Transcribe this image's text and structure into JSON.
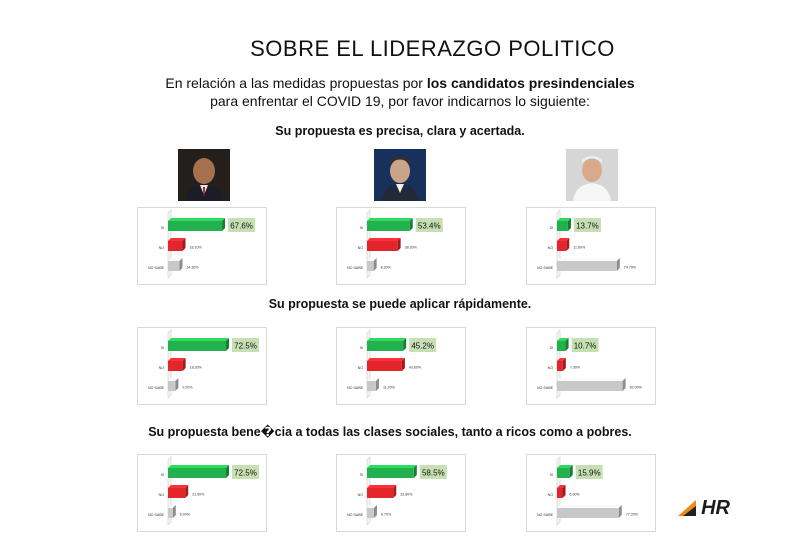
{
  "page": {
    "title": "SOBRE EL LIDERAZGO POLITICO",
    "intro_prefix": "En relación a las medidas propuestas por ",
    "intro_bold": "los candidatos presindenciales",
    "intro_line2": "para enfrentar el COVID 19, por favor indicarnos lo siguiente:",
    "brand": "HR"
  },
  "questions": [
    "Su propuesta es precisa, clara y acertada.",
    "Su propuesta se puede aplicar rápidamente.",
    "Su propuesta bene�cia a todas las clases sociales, tanto a ricos como a pobres."
  ],
  "colors": {
    "si": "#22b14c",
    "no": "#e3262b",
    "no_sabe": "#c8c8c8",
    "highlight": "#c6e0b4"
  },
  "chart_data": [
    {
      "type": "bar",
      "question": 0,
      "candidate": 0,
      "categories": [
        "SI",
        "NO",
        "NO SABE"
      ],
      "values": [
        67.6,
        18.1,
        14.3
      ],
      "labels": [
        "67.6%",
        "18.10%",
        "14.30%"
      ]
    },
    {
      "type": "bar",
      "question": 0,
      "candidate": 1,
      "categories": [
        "SI",
        "NO",
        "NO SABE"
      ],
      "values": [
        53.4,
        38.3,
        8.3
      ],
      "labels": [
        "53.4%",
        "38.30%",
        "8.30%"
      ]
    },
    {
      "type": "bar",
      "question": 0,
      "candidate": 2,
      "categories": [
        "SI",
        "NO",
        "NO SABE"
      ],
      "values": [
        13.7,
        11.6,
        74.7
      ],
      "labels": [
        "13.7%",
        "11.60%",
        "74.70%"
      ]
    },
    {
      "type": "bar",
      "question": 1,
      "candidate": 0,
      "categories": [
        "SI",
        "NO",
        "NO SABE"
      ],
      "values": [
        72.5,
        18.3,
        9.2
      ],
      "labels": [
        "72.5%",
        "18.30%",
        "9.20%"
      ]
    },
    {
      "type": "bar",
      "question": 1,
      "candidate": 1,
      "categories": [
        "SI",
        "NO",
        "NO SABE"
      ],
      "values": [
        45.2,
        43.6,
        11.2
      ],
      "labels": [
        "45.2%",
        "43.60%",
        "11.20%"
      ]
    },
    {
      "type": "bar",
      "question": 1,
      "candidate": 2,
      "categories": [
        "SI",
        "NO",
        "NO SABE"
      ],
      "values": [
        10.7,
        7.3,
        82.0
      ],
      "labels": [
        "10.7%",
        "7.30%",
        "82.00%"
      ]
    },
    {
      "type": "bar",
      "question": 2,
      "candidate": 0,
      "categories": [
        "SI",
        "NO",
        "NO SABE"
      ],
      "values": [
        72.5,
        21.5,
        6.0
      ],
      "labels": [
        "72.5%",
        "21.50%",
        "6.00%"
      ]
    },
    {
      "type": "bar",
      "question": 2,
      "candidate": 1,
      "categories": [
        "SI",
        "NO",
        "NO SABE"
      ],
      "values": [
        58.5,
        32.8,
        8.7
      ],
      "labels": [
        "58.5%",
        "32.80%",
        "8.70%"
      ]
    },
    {
      "type": "bar",
      "question": 2,
      "candidate": 2,
      "categories": [
        "SI",
        "NO",
        "NO SABE"
      ],
      "values": [
        15.9,
        6.9,
        77.2
      ],
      "labels": [
        "15.9%",
        "6.90%",
        "77.20%"
      ]
    }
  ]
}
